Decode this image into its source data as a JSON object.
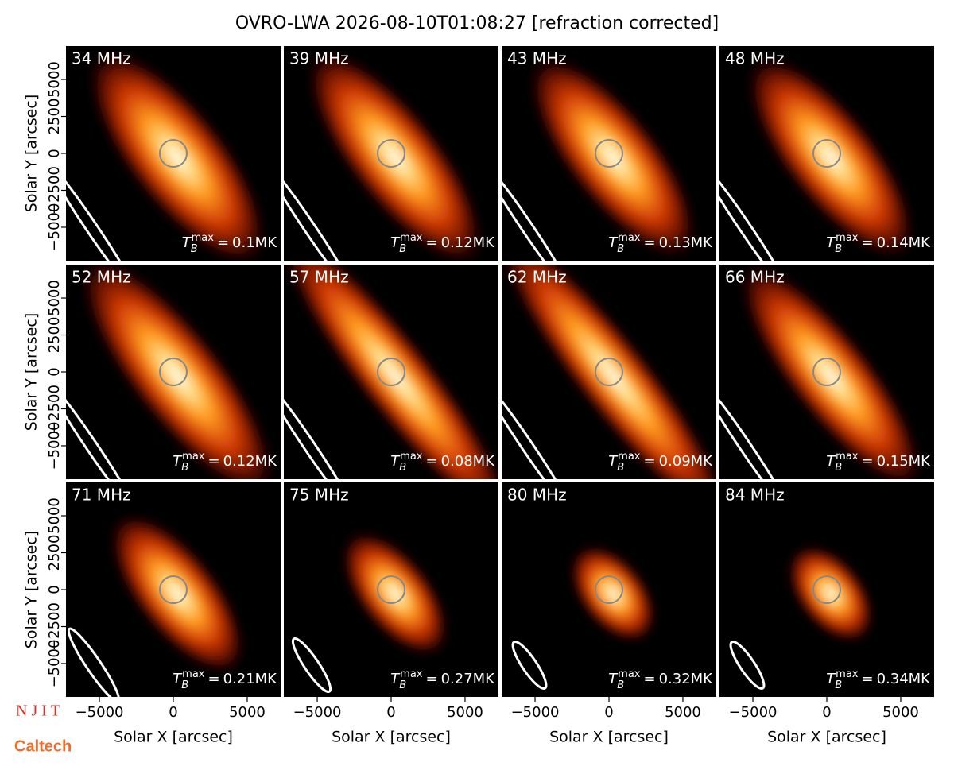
{
  "chart_data": {
    "type": "image_grid",
    "title": "OVRO-LWA 2026-08-10T01:08:27 [refraction corrected]",
    "xlabel": "Solar X [arcsec]",
    "ylabel": "Solar Y [arcsec]",
    "xlim": [
      -7260,
      7260
    ],
    "ylim": [
      -7260,
      7260
    ],
    "xticks": [
      {
        "value": -5000,
        "label": "−5000"
      },
      0,
      5000
    ],
    "yticks": [
      {
        "value": -5000,
        "label": "−5000"
      },
      {
        "value": -2500,
        "label": "−2500"
      },
      0,
      2500,
      5000
    ],
    "tb_label": {
      "symbol": "T",
      "sub": "B",
      "sup": "max",
      "eq": "="
    },
    "panels": [
      {
        "label": "34 MHz",
        "tb_max": "0.1MK"
      },
      {
        "label": "39 MHz",
        "tb_max": "0.12MK"
      },
      {
        "label": "43 MHz",
        "tb_max": "0.13MK"
      },
      {
        "label": "48 MHz",
        "tb_max": "0.14MK"
      },
      {
        "label": "52 MHz",
        "tb_max": "0.12MK"
      },
      {
        "label": "57 MHz",
        "tb_max": "0.08MK"
      },
      {
        "label": "62 MHz",
        "tb_max": "0.09MK"
      },
      {
        "label": "66 MHz",
        "tb_max": "0.15MK"
      },
      {
        "label": "71 MHz",
        "tb_max": "0.21MK"
      },
      {
        "label": "75 MHz",
        "tb_max": "0.27MK"
      },
      {
        "label": "80 MHz",
        "tb_max": "0.32MK"
      },
      {
        "label": "84 MHz",
        "tb_max": "0.34MK"
      }
    ],
    "logos": [
      "N J I T",
      "Caltech"
    ]
  }
}
